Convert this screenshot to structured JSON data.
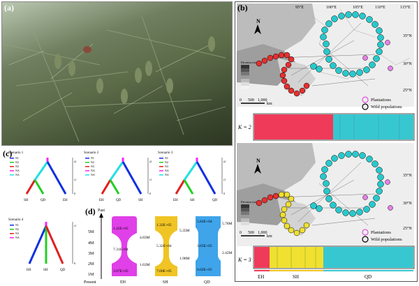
{
  "panels": {
    "a": "(a)",
    "b": "(b)",
    "c": "(c)",
    "d": "(d)"
  },
  "map": {
    "lon_labels": [
      "95°E",
      "100°E",
      "105°E",
      "110°E",
      "115°E"
    ],
    "lat_labels": [
      "35°N",
      "30°N",
      "25°N"
    ],
    "north": "N",
    "scale": [
      "0",
      "500",
      "1,000"
    ],
    "scale_unit": "km",
    "legend_title": "Elevation (m)",
    "legend_plantations": "Plantations",
    "legend_wild": "Wild populations",
    "k2": "K = 2",
    "k3": "K = 3",
    "groups": [
      "EH",
      "SH",
      "QD"
    ]
  },
  "scenarios": [
    {
      "title": "Scenario 1",
      "tips": [
        "SH",
        "QD",
        "EH"
      ]
    },
    {
      "title": "Scenario 2",
      "tips": [
        "EH",
        "QD",
        "SH"
      ]
    },
    {
      "title": "Scenario 3",
      "tips": [
        "EH",
        "SH",
        "QD"
      ]
    },
    {
      "title": "Scenario 4",
      "tips": [
        "EH",
        "SH",
        "QD"
      ]
    }
  ],
  "scenario_legend": [
    "N1",
    "N2",
    "N3",
    "NA",
    "NA"
  ],
  "scenario_axis": [
    "t2",
    "t1",
    "0"
  ],
  "panel_d": {
    "past": "Past",
    "present": "Present",
    "y_ticks": [
      "5M",
      "4M",
      "3M",
      "2M",
      "1M"
    ],
    "groups": [
      {
        "name": "EH",
        "top": "1.42E+05",
        "mid": "7.31E+04",
        "bottom": "3.07E+05",
        "right_top": "4.83M",
        "right_bottom": "1.63M",
        "color": "#e040e8"
      },
      {
        "name": "SH",
        "top": "1.32E+05",
        "mid": "5.32E+04",
        "bottom": "7.00E+05",
        "right_top": "5.35M",
        "right_bottom": "1.98M",
        "color": "#f0c424"
      },
      {
        "name": "QD",
        "top": "5.82E+04",
        "mid": "3.65E+05",
        "bottom": "6.02E+05",
        "right_top": "5.78M",
        "right_bottom": "2.42M",
        "color": "#3fa4ea"
      }
    ]
  }
}
